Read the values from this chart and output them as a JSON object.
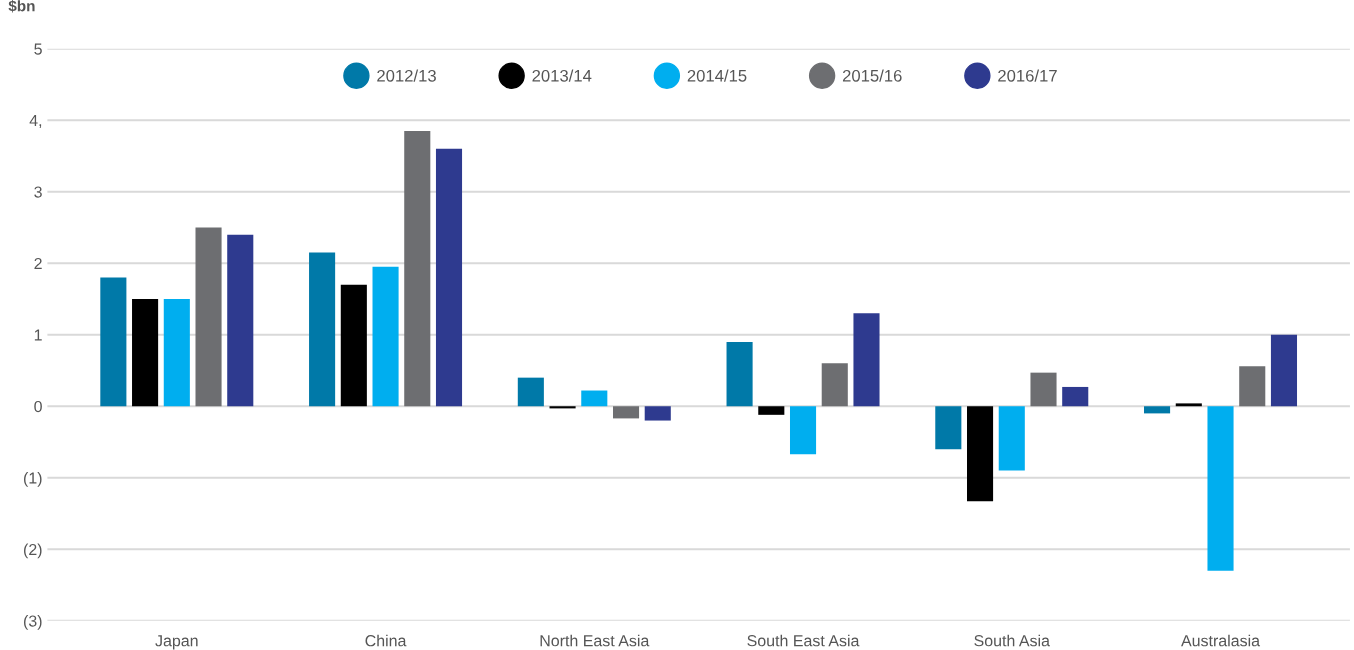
{
  "chart_data": {
    "type": "bar",
    "ylabel": "$bn",
    "categories": [
      "Japan",
      "China",
      "North East Asia",
      "South East Asia",
      "South Asia",
      "Australasia"
    ],
    "series": [
      {
        "name": "2012/13",
        "color": "#0079a8",
        "values": [
          1.8,
          2.15,
          0.4,
          0.9,
          -0.6,
          -0.1
        ]
      },
      {
        "name": "2013/14",
        "color": "#000000",
        "values": [
          1.5,
          1.7,
          -0.03,
          -0.12,
          -1.33,
          0.04
        ]
      },
      {
        "name": "2014/15",
        "color": "#00aeef",
        "values": [
          1.5,
          1.95,
          0.22,
          -0.67,
          -0.9,
          -2.3
        ]
      },
      {
        "name": "2015/16",
        "color": "#6d6e71",
        "values": [
          2.5,
          3.85,
          -0.17,
          0.6,
          0.47,
          0.56
        ]
      },
      {
        "name": "2016/17",
        "color": "#2e3a8f",
        "values": [
          2.4,
          3.6,
          -0.2,
          1.3,
          0.27,
          1.0
        ]
      }
    ],
    "ylim": [
      -3,
      5
    ],
    "yticks": [
      {
        "value": -3,
        "label": "(3)"
      },
      {
        "value": -2,
        "label": "(2)"
      },
      {
        "value": -1,
        "label": "(1)"
      },
      0,
      1,
      2,
      3,
      {
        "value": 4,
        "label": "4,"
      },
      5
    ],
    "grid": "y",
    "legend": "top"
  }
}
